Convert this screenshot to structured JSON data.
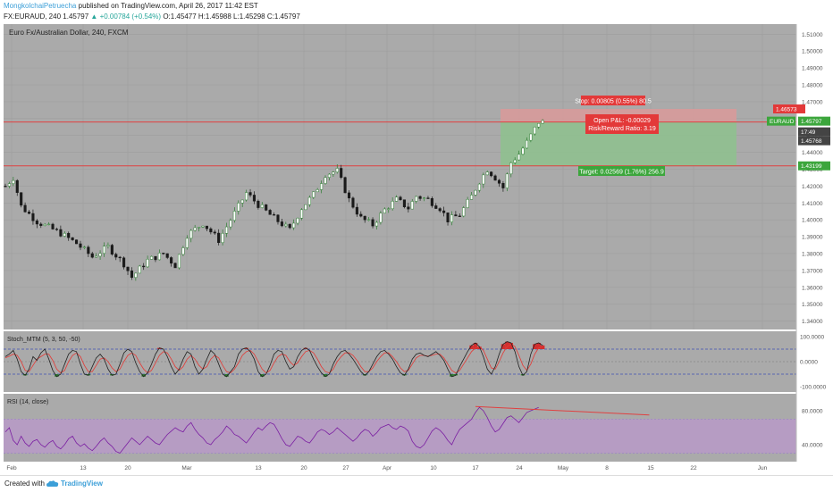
{
  "header": {
    "author": "MongkolchaiPetruecha",
    "published": "published on TradingView.com, April 26, 2017 11:42 EST",
    "symbol": "FX:EURAUD, 240",
    "last": "1.45797",
    "change": "+0.00784 (+0.54%)",
    "ohlc": "O:1.45477 H:1.45988 L:1.45298 C:1.45797"
  },
  "footer": {
    "created_with": "Created with",
    "brand": "TradingView"
  },
  "colors": {
    "panel_bg": "#aaaaaa",
    "rsi_band": "#b89ac8",
    "level_line": "#e04040",
    "target_zone": "#8fc08f",
    "stop_zone": "#d79a9a",
    "candle_up": "#2e7d32",
    "candle_down": "#1a1a1a",
    "stoch_fast": "#222222",
    "stoch_slow": "#e53935",
    "rsi_line": "#7b1fa2",
    "label_green": "#3ca63c",
    "label_red": "#e33939"
  },
  "chart_data": {
    "type": "candlestick",
    "title": "Euro Fx/Australian Dollar, 240, FXCM",
    "x_labels": [
      "Feb",
      "13",
      "20",
      "Mar",
      "13",
      "20",
      "27",
      "Apr",
      "10",
      "17",
      "24",
      "May",
      "8",
      "15",
      "22",
      "Jun"
    ],
    "price_ticks": [
      "1.51000",
      "1.50000",
      "1.49000",
      "1.48000",
      "1.47000",
      "1.46000",
      "1.45000",
      "1.44000",
      "1.43000",
      "1.42000",
      "1.41000",
      "1.40000",
      "1.39000",
      "1.38000",
      "1.37000",
      "1.36000",
      "1.35000",
      "1.34000"
    ],
    "ylim": [
      1.335,
      1.516
    ],
    "price_path": [
      [
        0,
        1.42
      ],
      [
        2,
        1.425
      ],
      [
        4,
        1.408
      ],
      [
        8,
        1.399
      ],
      [
        14,
        1.392
      ],
      [
        18,
        1.386
      ],
      [
        22,
        1.378
      ],
      [
        26,
        1.384
      ],
      [
        30,
        1.374
      ],
      [
        32,
        1.366
      ],
      [
        36,
        1.376
      ],
      [
        40,
        1.38
      ],
      [
        43,
        1.373
      ],
      [
        46,
        1.391
      ],
      [
        50,
        1.398
      ],
      [
        54,
        1.388
      ],
      [
        58,
        1.404
      ],
      [
        61,
        1.416
      ],
      [
        64,
        1.409
      ],
      [
        68,
        1.401
      ],
      [
        72,
        1.394
      ],
      [
        75,
        1.407
      ],
      [
        78,
        1.415
      ],
      [
        81,
        1.427
      ],
      [
        84,
        1.429
      ],
      [
        87,
        1.412
      ],
      [
        90,
        1.401
      ],
      [
        93,
        1.397
      ],
      [
        96,
        1.406
      ],
      [
        99,
        1.412
      ],
      [
        102,
        1.407
      ],
      [
        104,
        1.414
      ],
      [
        107,
        1.412
      ],
      [
        110,
        1.407
      ],
      [
        112,
        1.4
      ],
      [
        115,
        1.403
      ],
      [
        118,
        1.414
      ],
      [
        120,
        1.423
      ],
      [
        122,
        1.43
      ],
      [
        124,
        1.425
      ],
      [
        126,
        1.419
      ],
      [
        128,
        1.434
      ],
      [
        130,
        1.439
      ],
      [
        132,
        1.446
      ],
      [
        134,
        1.454
      ],
      [
        135,
        1.458
      ]
    ],
    "levels": [
      1.45797,
      1.43199
    ],
    "price_labels": [
      {
        "text": "1.46573",
        "style": "red"
      },
      {
        "text": "EURAUD",
        "style": "green"
      },
      {
        "text": "1.45797",
        "style": "green"
      },
      {
        "text": "17:49",
        "style": "dark"
      },
      {
        "text": "1.45768",
        "style": "dark"
      },
      {
        "text": "1.43199",
        "style": "green"
      }
    ],
    "position": {
      "entry": 1.45797,
      "stop": 1.46573,
      "target": 1.43199,
      "stop_label": "Stop: 0.00805 (0.55%) 80.5",
      "open_pl": "Open P&L: -0.00029",
      "risk_reward": "Risk/Reward Ratio: 3.19",
      "target_label": "Target: 0.02569 (1.76%) 256.9"
    },
    "stoch": {
      "name": "Stoch_MTM (5, 3, 50, -50)",
      "ylim": [
        -100,
        100
      ],
      "tick_labels": [
        "100.0000",
        "0.0000",
        "-100.0000"
      ],
      "upper": 50,
      "lower": -50,
      "fast": [
        20,
        30,
        45,
        10,
        -40,
        -55,
        -30,
        20,
        5,
        35,
        50,
        10,
        -35,
        -60,
        -50,
        -10,
        30,
        45,
        40,
        -10,
        -50,
        -55,
        -20,
        15,
        30,
        10,
        -30,
        -55,
        -50,
        -10,
        35,
        50,
        40,
        -5,
        -40,
        -60,
        -45,
        -10,
        30,
        55,
        50,
        20,
        -20,
        -50,
        -30,
        10,
        40,
        30,
        -20,
        -50,
        -30,
        10,
        45,
        30,
        -10,
        -50,
        -60,
        -40,
        -20,
        30,
        50,
        55,
        40,
        10,
        -40,
        -60,
        -50,
        -15,
        30,
        45,
        40,
        0,
        -30,
        -20,
        20,
        45,
        55,
        45,
        10,
        -20,
        -45,
        -60,
        -50,
        -10,
        20,
        40,
        45,
        30,
        10,
        -15,
        -40,
        -55,
        -40,
        -10,
        20,
        40,
        45,
        30,
        10,
        -20,
        -45,
        -55,
        -30,
        10,
        30,
        35,
        25,
        20,
        30,
        40,
        25,
        5,
        -30,
        -60,
        -55,
        -20,
        10,
        40,
        65,
        75,
        60,
        20,
        -30,
        -50,
        -20,
        30,
        70,
        80,
        75,
        40,
        -20,
        -55,
        -40,
        30,
        70,
        75,
        65
      ],
      "slow": [
        15,
        22,
        30,
        25,
        0,
        -35,
        -40,
        -15,
        10,
        20,
        30,
        30,
        5,
        -30,
        -45,
        -35,
        0,
        25,
        35,
        20,
        -15,
        -40,
        -40,
        -15,
        10,
        15,
        0,
        -25,
        -40,
        -30,
        0,
        25,
        35,
        25,
        -5,
        -30,
        -45,
        -35,
        -5,
        25,
        40,
        35,
        10,
        -20,
        -35,
        -20,
        10,
        25,
        10,
        -15,
        -30,
        -20,
        10,
        25,
        15,
        -15,
        -40,
        -45,
        -30,
        -5,
        25,
        40,
        45,
        30,
        0,
        -30,
        -45,
        -35,
        -5,
        20,
        30,
        25,
        0,
        -15,
        -5,
        20,
        40,
        45,
        35,
        10,
        -20,
        -40,
        -45,
        -30,
        0,
        20,
        35,
        35,
        25,
        5,
        -20,
        -40,
        -40,
        -25,
        0,
        20,
        35,
        35,
        20,
        0,
        -25,
        -40,
        -35,
        -10,
        15,
        25,
        25,
        22,
        25,
        30,
        30,
        15,
        -10,
        -35,
        -45,
        -35,
        -10,
        15,
        40,
        55,
        60,
        45,
        10,
        -25,
        -30,
        0,
        35,
        60,
        70,
        60,
        25,
        -15,
        -35,
        -10,
        30,
        55,
        60
      ]
    },
    "rsi": {
      "name": "RSI (14, close)",
      "ylim": [
        20,
        100
      ],
      "tick_labels": [
        "80.0000",
        "40.0000"
      ],
      "band": [
        30,
        70
      ],
      "values": [
        55,
        60,
        45,
        40,
        50,
        42,
        38,
        44,
        46,
        40,
        37,
        42,
        45,
        38,
        35,
        40,
        47,
        50,
        42,
        38,
        41,
        36,
        33,
        38,
        44,
        48,
        42,
        38,
        32,
        30,
        36,
        42,
        48,
        44,
        40,
        45,
        50,
        46,
        42,
        40,
        46,
        52,
        56,
        60,
        57,
        55,
        62,
        66,
        58,
        52,
        48,
        42,
        40,
        46,
        50,
        55,
        62,
        58,
        52,
        50,
        46,
        42,
        48,
        55,
        60,
        57,
        62,
        66,
        64,
        56,
        47,
        40,
        38,
        44,
        50,
        48,
        44,
        42,
        48,
        55,
        58,
        56,
        52,
        55,
        60,
        56,
        52,
        48,
        44,
        48,
        54,
        58,
        56,
        50,
        54,
        60,
        62,
        64,
        60,
        58,
        62,
        60,
        56,
        44,
        38,
        36,
        40,
        48,
        56,
        60,
        57,
        52,
        45,
        40,
        50,
        58,
        62,
        66,
        70,
        78,
        84,
        80,
        72,
        62,
        55,
        58,
        65,
        72,
        74,
        70,
        66,
        72,
        78,
        80,
        82,
        84
      ],
      "trendline_start": [
        119,
        85
      ],
      "trendline_end": [
        163,
        75
      ]
    }
  }
}
